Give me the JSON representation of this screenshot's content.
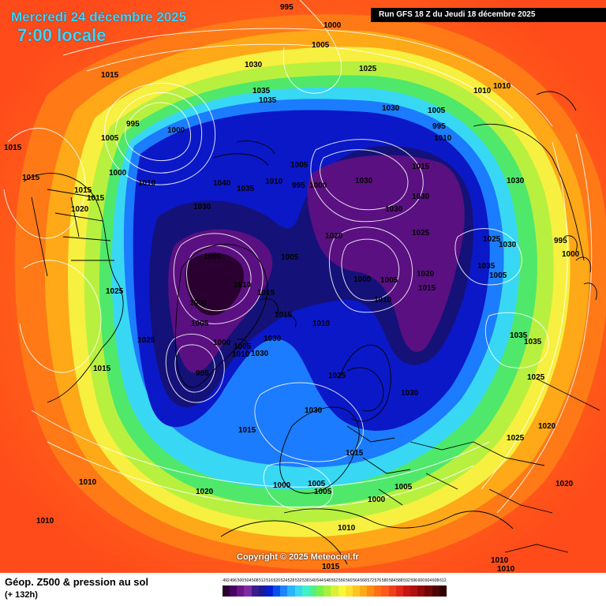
{
  "header": {
    "date": "Mercredi 24 décembre 2025",
    "time": "7:00 locale",
    "run": "Run GFS 18 Z du Jeudi 18 décembre 2025"
  },
  "copyright": "Copyright © 2025 Meteociel.fr",
  "footer": {
    "title": "Géop. Z500 & pression au sol",
    "subtitle": "(+ 132h)"
  },
  "legend": {
    "labels": [
      "492",
      "496",
      "500",
      "504",
      "508",
      "512",
      "516",
      "520",
      "524",
      "528",
      "532",
      "536",
      "540",
      "544",
      "548",
      "552",
      "556",
      "560",
      "564",
      "568",
      "572",
      "576",
      "580",
      "584",
      "588",
      "592",
      "596",
      "600",
      "604",
      "608",
      "612"
    ],
    "colors": [
      "#2a0030",
      "#4a0060",
      "#6a1488",
      "#7e2aa0",
      "#3a1c8a",
      "#1a1a9a",
      "#0020d0",
      "#0050f0",
      "#1c86ff",
      "#2ab4ff",
      "#3ad8f0",
      "#40f0c8",
      "#50f08a",
      "#7cf04a",
      "#a8f040",
      "#d8f038",
      "#f8f838",
      "#ffe02c",
      "#ffc420",
      "#ffa818",
      "#ff8c14",
      "#ff7012",
      "#ff5a1e",
      "#f0401a",
      "#e02818",
      "#c81414",
      "#b01010",
      "#900c0c",
      "#700808",
      "#500404",
      "#300000"
    ]
  },
  "map_colors": {
    "ocean_far": "#ff5a1e",
    "ring_orange": "#ff7a16",
    "ring_lightorange": "#ffa818",
    "ring_yellow": "#f8f040",
    "ring_yellowgreen": "#b8f040",
    "ring_green": "#50e86a",
    "ring_cyan": "#38d8f4",
    "ring_blue": "#1c7cff",
    "ring_darkblue": "#0a18c8",
    "ring_navy": "#141278",
    "ring_purple": "#5a1080",
    "ring_darkpurple": "#2a0030"
  },
  "pressure_labels": [
    "995",
    "1000",
    "1005",
    "1015",
    "1030",
    "1035",
    "1035",
    "1025",
    "1030",
    "1005",
    "995",
    "1010",
    "1010",
    "1010",
    "1015",
    "995",
    "1000",
    "1005",
    "1015",
    "1000",
    "1010",
    "1040",
    "1035",
    "1030",
    "1010",
    "995",
    "1000",
    "1005",
    "1030",
    "1030",
    "1015",
    "1030",
    "1025",
    "1015",
    "1020",
    "1015",
    "1030",
    "1020",
    "1025",
    "1030",
    "995",
    "1000",
    "1035",
    "1000",
    "1010",
    "1005",
    "1000",
    "1015",
    "1005",
    "1005",
    "1020",
    "1000",
    "1005",
    "1010",
    "1015",
    "1010",
    "1035",
    "1035",
    "1025",
    "1025",
    "1015",
    "1000",
    "1005",
    "1010",
    "1030",
    "995",
    "1030",
    "1030",
    "1025",
    "1030",
    "1025",
    "1015",
    "1015",
    "1020",
    "1015",
    "1000",
    "1005",
    "1005",
    "1000",
    "1005",
    "1025",
    "1020",
    "1020",
    "1010",
    "1010",
    "1010",
    "1015",
    "1010",
    "1010"
  ]
}
